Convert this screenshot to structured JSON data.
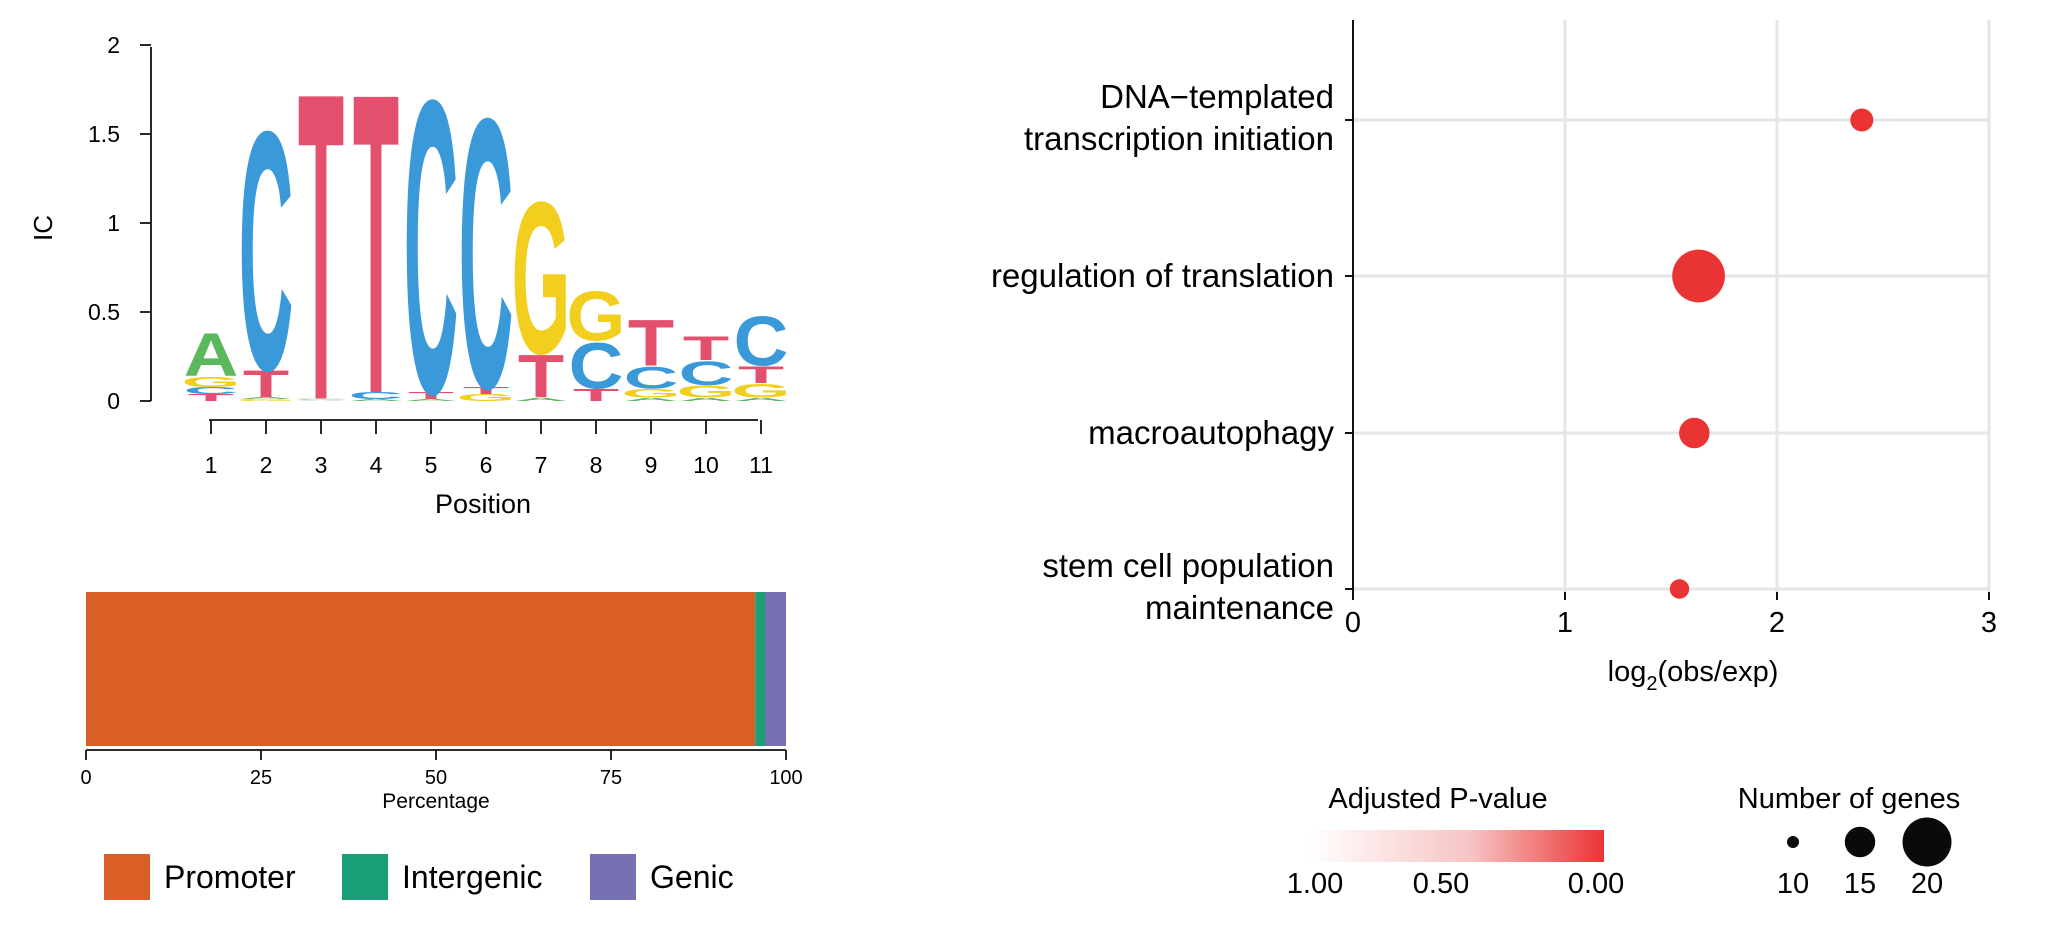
{
  "colors": {
    "A": "#5cb85c",
    "C": "#3a9ad9",
    "G": "#f2cf1f",
    "T": "#e3506e",
    "promoter": "#d95f26",
    "intergenic": "#1a9e77",
    "genic": "#7570b3",
    "dot": "#ea3434",
    "axis": "#111111",
    "grid": "#e6e6e6"
  },
  "chart_data": [
    {
      "type": "logo",
      "ylabel": "IC",
      "xlabel": "Position",
      "ylim": [
        0,
        2
      ],
      "yticks": [
        "0",
        "0.5",
        "1",
        "1.5",
        "2"
      ],
      "positions": [
        "1",
        "2",
        "3",
        "4",
        "5",
        "6",
        "7",
        "8",
        "9",
        "10",
        "11"
      ],
      "columns": [
        [
          {
            "base": "T",
            "ic": 0.04
          },
          {
            "base": "C",
            "ic": 0.04
          },
          {
            "base": "G",
            "ic": 0.06
          },
          {
            "base": "A",
            "ic": 0.25
          }
        ],
        [
          {
            "base": "G",
            "ic": 0.01
          },
          {
            "base": "A",
            "ic": 0.01
          },
          {
            "base": "T",
            "ic": 0.16
          },
          {
            "base": "C",
            "ic": 1.4
          }
        ],
        [
          {
            "base": "A",
            "ic": 0.005
          },
          {
            "base": "C",
            "ic": 0.005
          },
          {
            "base": "G",
            "ic": 0.005
          },
          {
            "base": "T",
            "ic": 1.8
          }
        ],
        [
          {
            "base": "A",
            "ic": 0.01
          },
          {
            "base": "C",
            "ic": 0.04
          },
          {
            "base": "T",
            "ic": 1.76
          }
        ],
        [
          {
            "base": "A",
            "ic": 0.01
          },
          {
            "base": "T",
            "ic": 0.04
          },
          {
            "base": "C",
            "ic": 1.72
          }
        ],
        [
          {
            "base": "G",
            "ic": 0.04
          },
          {
            "base": "T",
            "ic": 0.04
          },
          {
            "base": "C",
            "ic": 1.58
          }
        ],
        [
          {
            "base": "A",
            "ic": 0.02
          },
          {
            "base": "T",
            "ic": 0.25
          },
          {
            "base": "G",
            "ic": 0.89
          }
        ],
        [
          {
            "base": "T",
            "ic": 0.07
          },
          {
            "base": "C",
            "ic": 0.27
          },
          {
            "base": "G",
            "ic": 0.29
          }
        ],
        [
          {
            "base": "A",
            "ic": 0.02
          },
          {
            "base": "G",
            "ic": 0.05
          },
          {
            "base": "C",
            "ic": 0.13
          },
          {
            "base": "T",
            "ic": 0.27
          }
        ],
        [
          {
            "base": "A",
            "ic": 0.02
          },
          {
            "base": "G",
            "ic": 0.07
          },
          {
            "base": "C",
            "ic": 0.14
          },
          {
            "base": "T",
            "ic": 0.14
          }
        ],
        [
          {
            "base": "A",
            "ic": 0.02
          },
          {
            "base": "G",
            "ic": 0.08
          },
          {
            "base": "T",
            "ic": 0.1
          },
          {
            "base": "C",
            "ic": 0.29
          }
        ]
      ]
    },
    {
      "type": "bar",
      "orientation": "horizontal-stacked",
      "xlabel": "Percentage",
      "xlim": [
        0,
        100
      ],
      "xticks": [
        "0",
        "25",
        "50",
        "75",
        "100"
      ],
      "series": [
        {
          "name": "Promoter",
          "value": 95.6
        },
        {
          "name": "Intergenic",
          "value": 1.4
        },
        {
          "name": "Genic",
          "value": 3.0
        }
      ],
      "legend": [
        "Promoter",
        "Intergenic",
        "Genic"
      ]
    },
    {
      "type": "scatter",
      "xlabel_main": "log",
      "xlabel_sub": "2",
      "xlabel_rest": "(obs/exp)",
      "xlim": [
        0,
        3
      ],
      "xticks": [
        "0",
        "1",
        "2",
        "3"
      ],
      "categories": [
        [
          "DNA−templated",
          "transcription initiation"
        ],
        [
          "regulation of translation"
        ],
        [
          "macroautophagy"
        ],
        [
          "stem cell population",
          "maintenance"
        ]
      ],
      "points": [
        {
          "x": 2.4,
          "genes": 13,
          "padj": 0.01
        },
        {
          "x": 1.63,
          "genes": 21,
          "padj": 0.001
        },
        {
          "x": 1.61,
          "genes": 15,
          "padj": 0.01
        },
        {
          "x": 1.54,
          "genes": 12,
          "padj": 0.02
        }
      ],
      "color_legend": {
        "title": "Adjusted P-value",
        "labels": [
          "1.00",
          "0.50",
          "0.00"
        ]
      },
      "size_legend": {
        "title": "Number of genes",
        "labels": [
          "10",
          "15",
          "20"
        ],
        "values": [
          10,
          15,
          20
        ]
      }
    }
  ]
}
